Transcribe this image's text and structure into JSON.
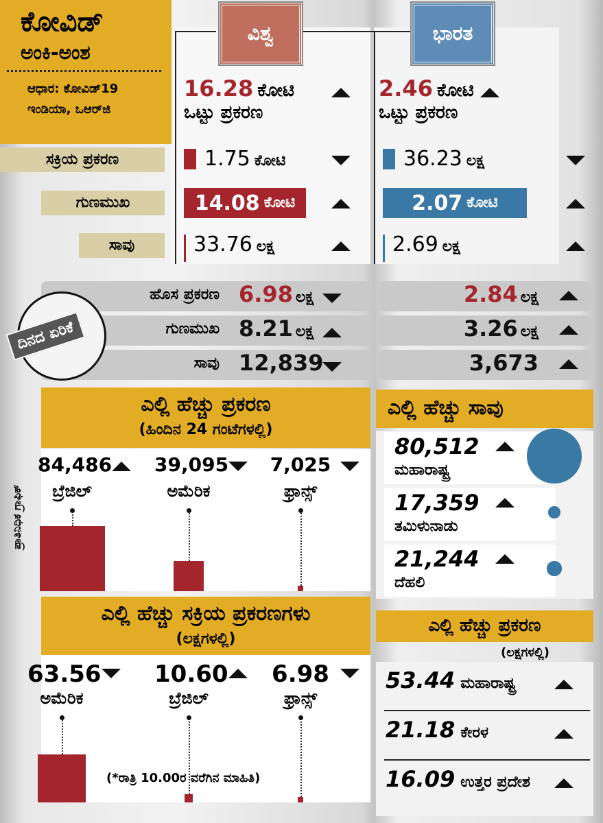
{
  "header": {
    "title": "ಕೋವಿಡ್",
    "subtitle": "ಅಂಕಿ-ಅಂಶ",
    "source": [
      "ಆಧಾರ: ಕೋವಿಡ್19",
      "ಇಂಡಿಯಾ, ಒಆರ್‌ಜಿ"
    ]
  },
  "columns": [
    "ವಿಶ್ವ",
    "ಭಾರತ"
  ],
  "totals": {
    "label": "ಒಟ್ಟು ಪ್ರಕರಣ",
    "world": {
      "value": "16.28",
      "unit": "ಕೋಟಿ",
      "trend": "up"
    },
    "india": {
      "value": "2.46",
      "unit": "ಕೋಟಿ",
      "trend": "up"
    }
  },
  "stats": [
    {
      "label": "ಸಕ್ರಿಯ ಪ್ರಕರಣ",
      "world": {
        "value": "1.75",
        "unit": "ಕೋಟಿ",
        "trend": "down"
      },
      "india": {
        "value": "36.23",
        "unit": "ಲಕ್ಷ",
        "trend": "down"
      }
    },
    {
      "label": "ಗುಣಮುಖ",
      "world": {
        "value": "14.08",
        "unit": "ಕೋಟಿ",
        "trend": "up"
      },
      "india": {
        "value": "2.07",
        "unit": "ಕೋಟಿ",
        "trend": "up"
      }
    },
    {
      "label": "ಸಾವು",
      "world": {
        "value": "33.76",
        "unit": "ಲಕ್ಷ",
        "trend": "up"
      },
      "india": {
        "value": "2.69",
        "unit": "ಲಕ್ಷ",
        "trend": "up"
      }
    }
  ],
  "daily": {
    "title": "ದಿನದ ಏರಿಕೆ",
    "rows": [
      {
        "label": "ಹೊಸ ಪ್ರಕರಣ",
        "world": {
          "value": "6.98",
          "unit": "ಲಕ್ಷ",
          "trend": "down"
        },
        "india": {
          "value": "2.84",
          "unit": "ಲಕ್ಷ",
          "trend": "up"
        }
      },
      {
        "label": "ಗುಣಮುಖ",
        "world": {
          "value": "8.21",
          "unit": "ಲಕ್ಷ",
          "trend": "up"
        },
        "india": {
          "value": "3.26",
          "unit": "ಲಕ್ಷ",
          "trend": "up"
        }
      },
      {
        "label": "ಸಾವು",
        "world": {
          "value": "12,839",
          "trend": "down"
        },
        "india": {
          "value": "3,673",
          "trend": "up"
        }
      }
    ]
  },
  "most_cases_24h": {
    "title": "ಎಲ್ಲಿ ಹೆಚ್ಚು ಪ್ರಕರಣ",
    "subtitle": "(ಹಿಂದಿನ 24 ಗಂಟೆಗಳಲ್ಲಿ)",
    "side_label": "ಪ್ರಾತಿನಿಧಿಕ ಗ್ರಾಫಿಕ್",
    "items": [
      {
        "value": 84486,
        "label": "84,486",
        "name": "ಬ್ರೆಜಿಲ್",
        "trend": "up"
      },
      {
        "value": 39095,
        "label": "39,095",
        "name": "ಅಮೆರಿಕ",
        "trend": "down"
      },
      {
        "value": 7025,
        "label": "7,025",
        "name": "ಫ್ರಾನ್ಸ್",
        "trend": "down"
      }
    ]
  },
  "most_active": {
    "title": "ಎಲ್ಲಿ ಹೆಚ್ಚು ಸಕ್ರಿಯ ಪ್ರಕರಣಗಳು",
    "subtitle": "(ಲಕ್ಷಗಳಲ್ಲಿ)",
    "items": [
      {
        "value": 63.56,
        "label": "63.56",
        "name": "ಅಮೆರಿಕ",
        "trend": "down"
      },
      {
        "value": 10.6,
        "label": "10.60",
        "name": "ಬ್ರೆಜಿಲ್",
        "trend": "up"
      },
      {
        "value": 6.98,
        "label": "6.98",
        "name": "ಫ್ರಾನ್ಸ್",
        "trend": "down"
      }
    ]
  },
  "note": "(*ರಾತ್ರಿ 10.00ರ ವರೆಗಿನ ಮಾಹಿತಿ)",
  "most_deaths": {
    "title": "ಎಲ್ಲಿ ಹೆಚ್ಚು ಸಾವು",
    "items": [
      {
        "value": 80512,
        "label": "80,512",
        "name": "ಮಹಾರಾಷ್ಟ್ರ",
        "trend": "up"
      },
      {
        "value": 17359,
        "label": "17,359",
        "name": "ತಮಿಳುನಾಡು",
        "trend": "up"
      },
      {
        "value": 21244,
        "label": "21,244",
        "name": "ದೆಹಲಿ",
        "trend": "up"
      }
    ]
  },
  "most_cases_india": {
    "title": "ಎಲ್ಲಿ ಹೆಚ್ಚು ಪ್ರಕರಣ",
    "subtitle": "(ಲಕ್ಷಗಳಲ್ಲಿ)",
    "items": [
      {
        "value": "53.44",
        "name": "ಮಹಾರಾಷ್ಟ್ರ",
        "trend": "up"
      },
      {
        "value": "21.18",
        "name": "ಕೇರಳ",
        "trend": "up"
      },
      {
        "value": "16.09",
        "name": "ಉತ್ತರ ಪ್ರದೇಶ",
        "trend": "up"
      }
    ]
  }
}
